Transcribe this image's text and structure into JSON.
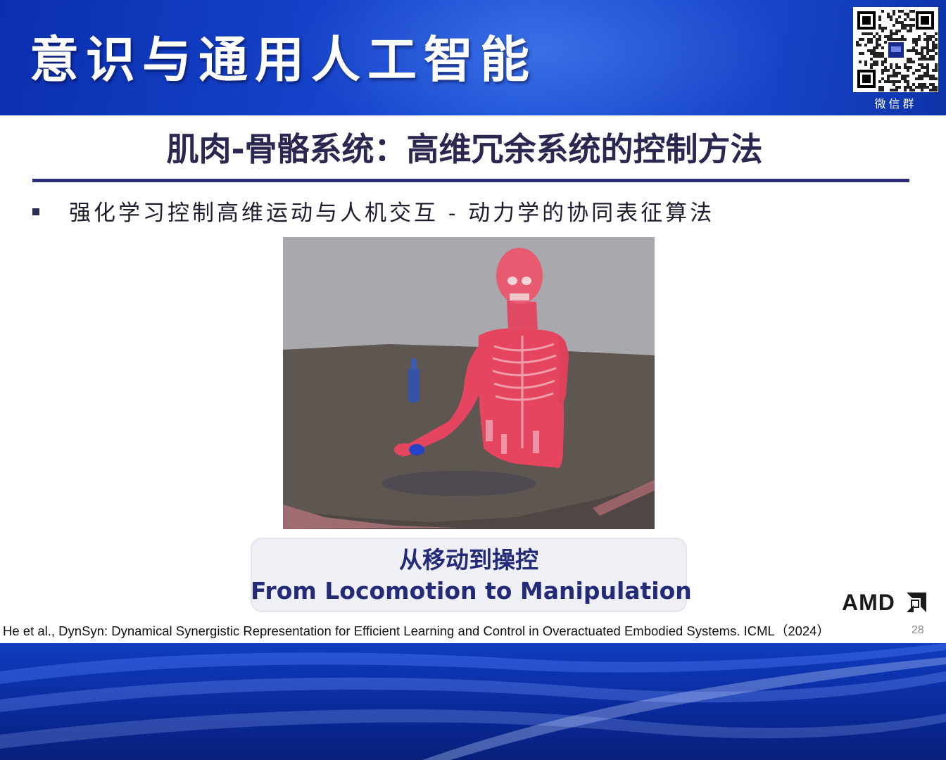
{
  "header": {
    "title": "意识与通用人工智能",
    "qr_caption": "微信群"
  },
  "slide": {
    "title": "肌肉-骨骼系统：高维冗余系统的控制方法",
    "bullet": "强化学习控制高维运动与人机交互 - 动力学的协同表征算法"
  },
  "caption": {
    "cn": "从移动到操控",
    "en": "From Locomotion to Manipulation"
  },
  "citation": "He et al., DynSyn: Dynamical Synergistic Representation for Efficient Learning and Control in Overactuated Embodied Systems. ICML（2024）",
  "page_number": "28",
  "logo": "AMD",
  "colors": {
    "header_blue": "#1440c6",
    "title_navy": "#2a2750",
    "caption_blue": "#242a7a",
    "muscle_red": "#e8475e"
  }
}
